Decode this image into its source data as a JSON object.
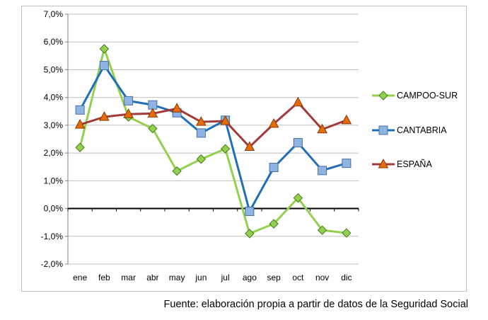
{
  "source_note": "Fuente: elaboración propia a partir de datos de la Seguridad Social",
  "chart_data": {
    "type": "line",
    "title": "",
    "xlabel": "",
    "ylabel": "",
    "categories": [
      "ene",
      "feb",
      "mar",
      "abr",
      "may",
      "jun",
      "jul",
      "ago",
      "sep",
      "oct",
      "nov",
      "dic"
    ],
    "ylim": [
      -2.0,
      7.0
    ],
    "y_tick_step": 1.0,
    "y_tick_format": "percent_one_decimal_comma",
    "y_ticks": [
      "7,0%",
      "6,0%",
      "5,0%",
      "4,0%",
      "3,0%",
      "2,0%",
      "1,0%",
      "0,0%",
      "-1,0%",
      "-2,0%"
    ],
    "grid": {
      "horizontal": true,
      "vertical": false
    },
    "legend": "right",
    "series": [
      {
        "name": "CAMPOO-SUR",
        "color": "#92d050",
        "marker": "diamond",
        "marker_edge": "#4a7a1e",
        "values": [
          2.2,
          5.75,
          3.3,
          2.88,
          1.35,
          1.78,
          2.15,
          -0.9,
          -0.55,
          0.38,
          -0.78,
          -0.88
        ]
      },
      {
        "name": "CANTABRIA",
        "color": "#1f6fb8",
        "marker": "square",
        "marker_fill": "#8db4e2",
        "marker_edge": "#4a6f9c",
        "values": [
          3.55,
          5.15,
          3.88,
          3.73,
          3.45,
          2.72,
          3.18,
          -0.1,
          1.48,
          2.37,
          1.37,
          1.63
        ]
      },
      {
        "name": "ESPAÑA",
        "color": "#a33a3a",
        "marker": "triangle",
        "marker_fill": "#e46c0a",
        "marker_edge": "#8b3a0a",
        "values": [
          3.02,
          3.3,
          3.4,
          3.42,
          3.6,
          3.12,
          3.15,
          2.22,
          3.05,
          3.82,
          2.85,
          3.18
        ]
      }
    ]
  }
}
